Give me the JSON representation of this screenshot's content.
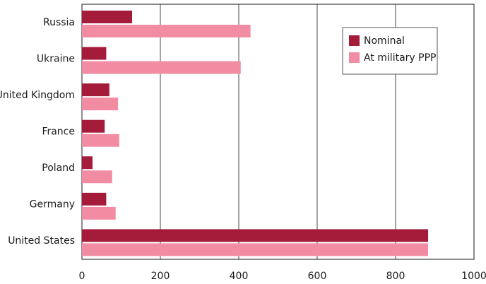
{
  "chart_data": {
    "type": "bar",
    "orientation": "horizontal",
    "categories": [
      "Russia",
      "Ukraine",
      "United Kingdom",
      "France",
      "Poland",
      "Germany",
      "United States"
    ],
    "series": [
      {
        "name": "Nominal",
        "color": "#a51c3a",
        "values": [
          128,
          62,
          70,
          58,
          27,
          62,
          883
        ]
      },
      {
        "name": "At military PPP",
        "color": "#f28ca3",
        "values": [
          430,
          405,
          92,
          95,
          77,
          86,
          883
        ]
      }
    ],
    "xlim": [
      0,
      1000
    ],
    "xticks": [
      0,
      200,
      400,
      600,
      800,
      1000
    ],
    "grid": {
      "vertical": true,
      "color": "#1a1a1a"
    },
    "legend": {
      "position": "top-right",
      "entries": [
        "Nominal",
        "At military PPP"
      ]
    }
  }
}
